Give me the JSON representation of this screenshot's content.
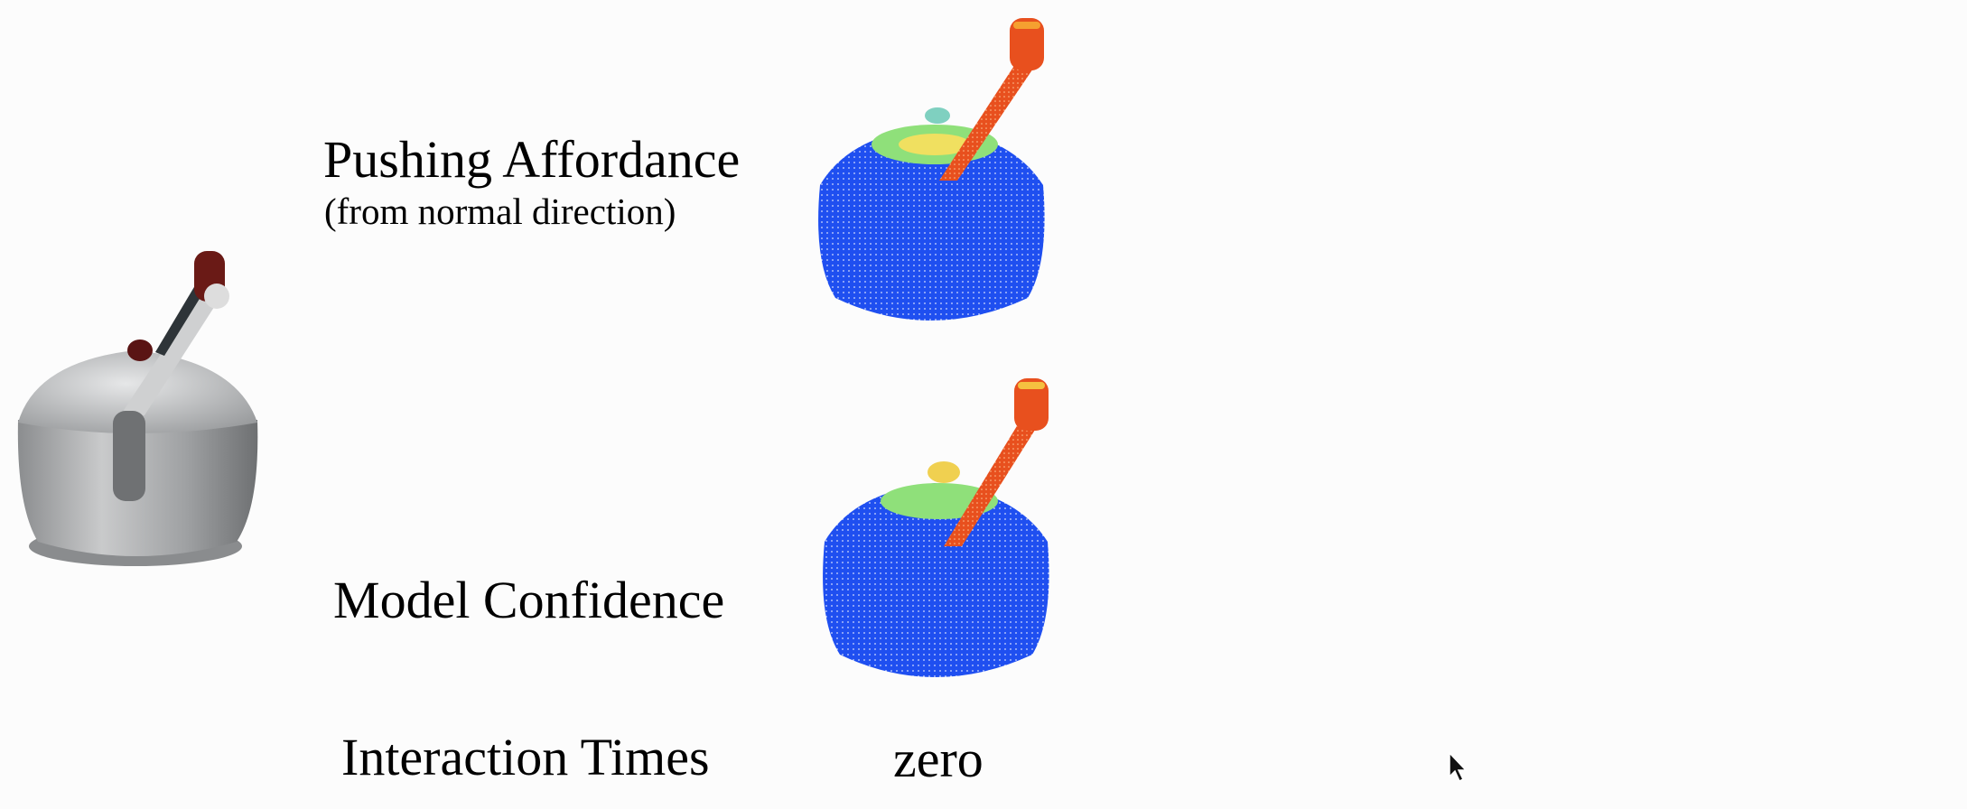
{
  "labels": {
    "pushing_affordance": "Pushing Affordance",
    "pushing_subtitle": "(from normal direction)",
    "model_confidence": "Model Confidence",
    "interaction_times": "Interaction Times",
    "interaction_value": "zero"
  },
  "figures": {
    "object": "rendered-kettle",
    "affordance_map": "point-cloud-heatmap",
    "confidence_map": "point-cloud-heatmap"
  },
  "colors": {
    "background": "#fcfcfc",
    "cloud_low": "#1f4ff0",
    "cloud_high": "#e8501e",
    "cloud_mid": "#7fe07a"
  }
}
